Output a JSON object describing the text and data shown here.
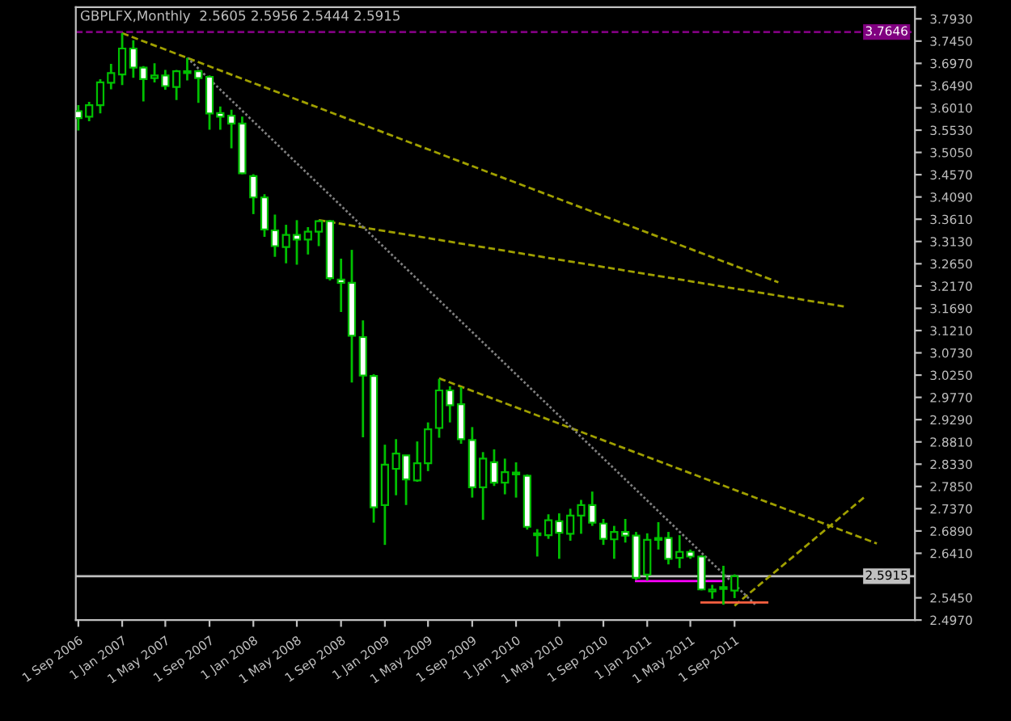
{
  "chart_data": {
    "type": "candlestick",
    "title": "GBPLFX,Monthly  2.5605 2.5956 2.5444 2.5915",
    "x": [
      "2006-09",
      "2006-10",
      "2006-11",
      "2006-12",
      "2007-01",
      "2007-02",
      "2007-03",
      "2007-04",
      "2007-05",
      "2007-06",
      "2007-07",
      "2007-08",
      "2007-09",
      "2007-10",
      "2007-11",
      "2007-12",
      "2008-01",
      "2008-02",
      "2008-03",
      "2008-04",
      "2008-05",
      "2008-06",
      "2008-07",
      "2008-08",
      "2008-09",
      "2008-10",
      "2008-11",
      "2008-12",
      "2009-01",
      "2009-02",
      "2009-03",
      "2009-04",
      "2009-05",
      "2009-06",
      "2009-07",
      "2009-08",
      "2009-09",
      "2009-10",
      "2009-11",
      "2009-12",
      "2010-01",
      "2010-02",
      "2010-03",
      "2010-04",
      "2010-05",
      "2010-06",
      "2010-07",
      "2010-08",
      "2010-09",
      "2010-10",
      "2010-11",
      "2010-12",
      "2011-01",
      "2011-02",
      "2011-03",
      "2011-04",
      "2011-05",
      "2011-06",
      "2011-07",
      "2011-08",
      "2011-09"
    ],
    "ohlc": [
      [
        3.594,
        3.607,
        3.552,
        3.579
      ],
      [
        3.582,
        3.614,
        3.572,
        3.607
      ],
      [
        3.607,
        3.663,
        3.589,
        3.656
      ],
      [
        3.655,
        3.696,
        3.641,
        3.676
      ],
      [
        3.673,
        3.762,
        3.65,
        3.729
      ],
      [
        3.729,
        3.747,
        3.666,
        3.688
      ],
      [
        3.688,
        3.691,
        3.615,
        3.663
      ],
      [
        3.665,
        3.697,
        3.656,
        3.671
      ],
      [
        3.671,
        3.683,
        3.64,
        3.648
      ],
      [
        3.646,
        3.683,
        3.618,
        3.68
      ],
      [
        3.676,
        3.709,
        3.66,
        3.68
      ],
      [
        3.68,
        3.683,
        3.612,
        3.665
      ],
      [
        3.668,
        3.671,
        3.554,
        3.589
      ],
      [
        3.59,
        3.604,
        3.554,
        3.582
      ],
      [
        3.584,
        3.597,
        3.514,
        3.567
      ],
      [
        3.567,
        3.582,
        3.458,
        3.46
      ],
      [
        3.454,
        3.458,
        3.372,
        3.408
      ],
      [
        3.408,
        3.415,
        3.323,
        3.339
      ],
      [
        3.337,
        3.371,
        3.28,
        3.303
      ],
      [
        3.301,
        3.349,
        3.266,
        3.327
      ],
      [
        3.327,
        3.359,
        3.263,
        3.317
      ],
      [
        3.317,
        3.344,
        3.285,
        3.334
      ],
      [
        3.334,
        3.359,
        3.303,
        3.357
      ],
      [
        3.357,
        3.359,
        3.229,
        3.234
      ],
      [
        3.231,
        3.276,
        3.161,
        3.224
      ],
      [
        3.224,
        3.295,
        3.009,
        3.11
      ],
      [
        3.107,
        3.143,
        2.891,
        3.024
      ],
      [
        3.023,
        3.027,
        2.707,
        2.74
      ],
      [
        2.745,
        2.875,
        2.659,
        2.832
      ],
      [
        2.823,
        2.887,
        2.766,
        2.856
      ],
      [
        2.852,
        2.852,
        2.745,
        2.8
      ],
      [
        2.798,
        2.882,
        2.795,
        2.835
      ],
      [
        2.835,
        2.923,
        2.818,
        2.908
      ],
      [
        2.911,
        3.017,
        2.89,
        2.992
      ],
      [
        2.992,
        3.001,
        2.923,
        2.96
      ],
      [
        2.962,
        2.999,
        2.877,
        2.887
      ],
      [
        2.885,
        2.913,
        2.761,
        2.783
      ],
      [
        2.783,
        2.859,
        2.713,
        2.845
      ],
      [
        2.837,
        2.865,
        2.786,
        2.793
      ],
      [
        2.793,
        2.845,
        2.768,
        2.816
      ],
      [
        2.811,
        2.837,
        2.761,
        2.815
      ],
      [
        2.808,
        2.811,
        2.692,
        2.698
      ],
      [
        2.68,
        2.693,
        2.634,
        2.684
      ],
      [
        2.68,
        2.725,
        2.672,
        2.712
      ],
      [
        2.71,
        2.727,
        2.629,
        2.685
      ],
      [
        2.683,
        2.737,
        2.668,
        2.722
      ],
      [
        2.722,
        2.756,
        2.683,
        2.745
      ],
      [
        2.745,
        2.774,
        2.7,
        2.707
      ],
      [
        2.705,
        2.715,
        2.659,
        2.672
      ],
      [
        2.671,
        2.7,
        2.629,
        2.687
      ],
      [
        2.687,
        2.715,
        2.664,
        2.679
      ],
      [
        2.679,
        2.687,
        2.583,
        2.588
      ],
      [
        2.595,
        2.684,
        2.582,
        2.67
      ],
      [
        2.67,
        2.708,
        2.649,
        2.674
      ],
      [
        2.674,
        2.687,
        2.617,
        2.629
      ],
      [
        2.631,
        2.68,
        2.609,
        2.644
      ],
      [
        2.644,
        2.649,
        2.629,
        2.634
      ],
      [
        2.634,
        2.636,
        2.561,
        2.563
      ],
      [
        2.559,
        2.573,
        2.543,
        2.563
      ],
      [
        2.564,
        2.614,
        2.53,
        2.568
      ],
      [
        2.5605,
        2.5956,
        2.5444,
        2.5915
      ]
    ],
    "color": "#00c000",
    "colors": [
      "#ffffff",
      "#000000",
      "#000000",
      "#000000",
      "#000000",
      "#ffffff",
      "#ffffff",
      "#000000",
      "#ffffff",
      "#000000",
      "#000000",
      "#ffffff",
      "#ffffff",
      "#ffffff",
      "#ffffff",
      "#ffffff",
      "#ffffff",
      "#ffffff",
      "#ffffff",
      "#000000",
      "#ffffff",
      "#000000",
      "#000000",
      "#ffffff",
      "#ffffff",
      "#ffffff",
      "#ffffff",
      "#ffffff",
      "#000000",
      "#000000",
      "#ffffff",
      "#000000",
      "#000000",
      "#000000",
      "#ffffff",
      "#ffffff",
      "#ffffff",
      "#000000",
      "#ffffff",
      "#000000",
      "#000000",
      "#ffffff",
      "#000000",
      "#000000",
      "#ffffff",
      "#000000",
      "#000000",
      "#ffffff",
      "#ffffff",
      "#000000",
      "#ffffff",
      "#ffffff",
      "#000000",
      "#000000",
      "#ffffff",
      "#000000",
      "#ffffff",
      "#ffffff",
      "#000000",
      "#000000",
      "#000000"
    ],
    "series": [
      {
        "type": "line",
        "color": "#a0a000",
        "line_style": "dashed",
        "x": [
          "2007-01",
          "2012-01"
        ],
        "values": [
          3.762,
          3.225
        ]
      },
      {
        "type": "line",
        "color": "#a0a000",
        "line_style": "dashed",
        "x": [
          "2008-07",
          "2012-07"
        ],
        "values": [
          3.359,
          3.173
        ]
      },
      {
        "type": "line",
        "color": "#a0a000",
        "line_style": "dashed",
        "x": [
          "2009-06",
          "2012-10"
        ],
        "values": [
          3.018,
          2.662
        ]
      },
      {
        "type": "line",
        "color": "#a0a000",
        "line_style": "dashed",
        "x": [
          "2011-09",
          "2012-09"
        ],
        "values": [
          2.528,
          2.765
        ]
      },
      {
        "type": "line",
        "color": "#808080",
        "line_style": "dotted",
        "x": [
          "2007-07",
          "2011-11"
        ],
        "values": [
          3.709,
          2.528
        ]
      },
      {
        "type": "line",
        "color": "#ff00ff",
        "line_style": "solid",
        "x": [
          "2010-12",
          "2011-08"
        ],
        "values": [
          2.581,
          2.581
        ]
      },
      {
        "type": "line",
        "color": "#ff6040",
        "line_style": "solid",
        "x": [
          "2011-06",
          "2011-12"
        ],
        "values": [
          2.535,
          2.535
        ]
      }
    ],
    "ref_lines": [
      {
        "axis": "y",
        "value": 3.7646,
        "label": "3.7646",
        "color": "#800080",
        "line_style": "dashed"
      },
      {
        "axis": "y",
        "value": 2.5915,
        "label": "2.5915",
        "color": "#c0c0c0",
        "line_style": "solid"
      }
    ],
    "xlim": [
      "2006-08-25",
      "2013-01-15"
    ],
    "xticks": [
      {
        "value": "2006-09-01",
        "label": "1 Sep 2006"
      },
      {
        "value": "2007-01-01",
        "label": "1 Jan 2007"
      },
      {
        "value": "2007-05-01",
        "label": "1 May 2007"
      },
      {
        "value": "2007-09-01",
        "label": "1 Sep 2007"
      },
      {
        "value": "2008-01-01",
        "label": "1 Jan 2008"
      },
      {
        "value": "2008-05-01",
        "label": "1 May 2008"
      },
      {
        "value": "2008-09-01",
        "label": "1 Sep 2008"
      },
      {
        "value": "2009-01-01",
        "label": "1 Jan 2009"
      },
      {
        "value": "2009-05-01",
        "label": "1 May 2009"
      },
      {
        "value": "2009-09-01",
        "label": "1 Sep 2009"
      },
      {
        "value": "2010-01-01",
        "label": "1 Jan 2010"
      },
      {
        "value": "2010-05-01",
        "label": "1 May 2010"
      },
      {
        "value": "2010-09-01",
        "label": "1 Sep 2010"
      },
      {
        "value": "2011-01-01",
        "label": "1 Jan 2011"
      },
      {
        "value": "2011-05-01",
        "label": "1 May 2011"
      },
      {
        "value": "2011-09-01",
        "label": "1 Sep 2011"
      }
    ],
    "ylim": [
      2.497,
      3.818
    ],
    "yticks": [
      {
        "value": 2.497,
        "label": "2.4970"
      },
      {
        "value": 2.545,
        "label": "2.5450"
      },
      {
        "value": 2.641,
        "label": "2.6410"
      },
      {
        "value": 2.689,
        "label": "2.6890"
      },
      {
        "value": 2.737,
        "label": "2.7370"
      },
      {
        "value": 2.785,
        "label": "2.7850"
      },
      {
        "value": 2.833,
        "label": "2.8330"
      },
      {
        "value": 2.881,
        "label": "2.8810"
      },
      {
        "value": 2.929,
        "label": "2.9290"
      },
      {
        "value": 2.977,
        "label": "2.9770"
      },
      {
        "value": 3.025,
        "label": "3.0250"
      },
      {
        "value": 3.073,
        "label": "3.0730"
      },
      {
        "value": 3.121,
        "label": "3.1210"
      },
      {
        "value": 3.169,
        "label": "3.1690"
      },
      {
        "value": 3.217,
        "label": "3.2170"
      },
      {
        "value": 3.265,
        "label": "3.2650"
      },
      {
        "value": 3.313,
        "label": "3.3130"
      },
      {
        "value": 3.361,
        "label": "3.3610"
      },
      {
        "value": 3.409,
        "label": "3.4090"
      },
      {
        "value": 3.457,
        "label": "3.4570"
      },
      {
        "value": 3.505,
        "label": "3.5050"
      },
      {
        "value": 3.553,
        "label": "3.5530"
      },
      {
        "value": 3.601,
        "label": "3.6010"
      },
      {
        "value": 3.649,
        "label": "3.6490"
      },
      {
        "value": 3.697,
        "label": "3.6970"
      },
      {
        "value": 3.745,
        "label": "3.7450"
      },
      {
        "value": 3.793,
        "label": "3.7930"
      }
    ],
    "grid": false,
    "legend": false
  }
}
